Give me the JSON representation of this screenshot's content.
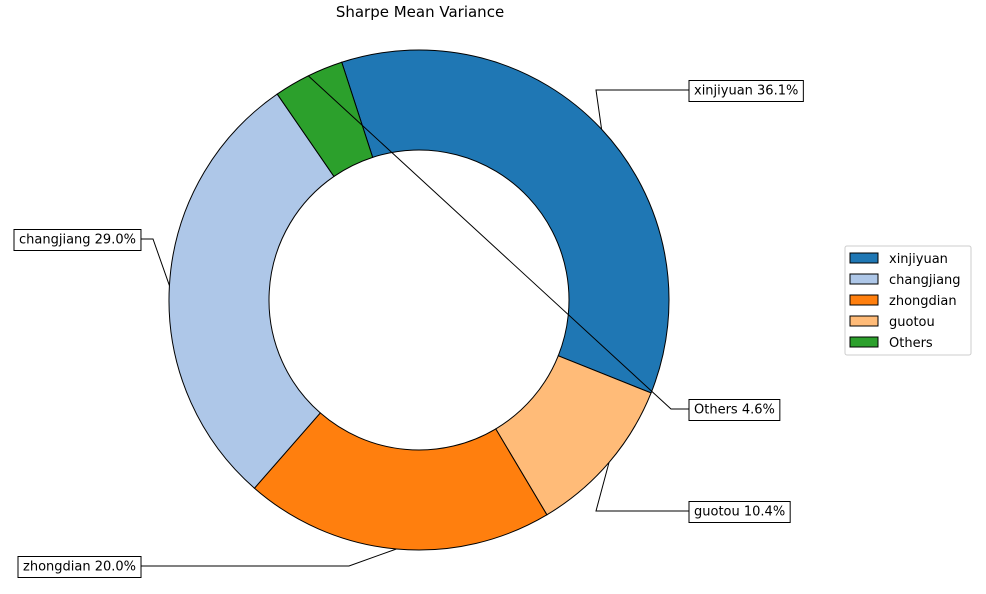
{
  "chart_data": {
    "type": "pie",
    "style": "donut",
    "title": "Sharpe Mean Variance",
    "slices": [
      {
        "label": "xinjiyuan",
        "value": 36.1,
        "display": "xinjiyuan 36.1%",
        "color": "#1f77b4"
      },
      {
        "label": "guotou",
        "value": 10.4,
        "display": "guotou 10.4%",
        "color": "#ffbb78"
      },
      {
        "label": "zhongdian",
        "value": 20.0,
        "display": "zhongdian 20.0%",
        "color": "#ff7f0e"
      },
      {
        "label": "changjiang",
        "value": 29.0,
        "display": "changjiang 29.0%",
        "color": "#aec7e8"
      },
      {
        "label": "Others",
        "value": 4.6,
        "display": "Others 4.6%",
        "color": "#2ca02c"
      }
    ],
    "legend": {
      "placement": "right",
      "entries": [
        {
          "label": "xinjiyuan",
          "color": "#1f77b4"
        },
        {
          "label": "changjiang",
          "color": "#aec7e8"
        },
        {
          "label": "zhongdian",
          "color": "#ff7f0e"
        },
        {
          "label": "guotou",
          "color": "#ffbb78"
        },
        {
          "label": "Others",
          "color": "#2ca02c"
        }
      ]
    }
  }
}
